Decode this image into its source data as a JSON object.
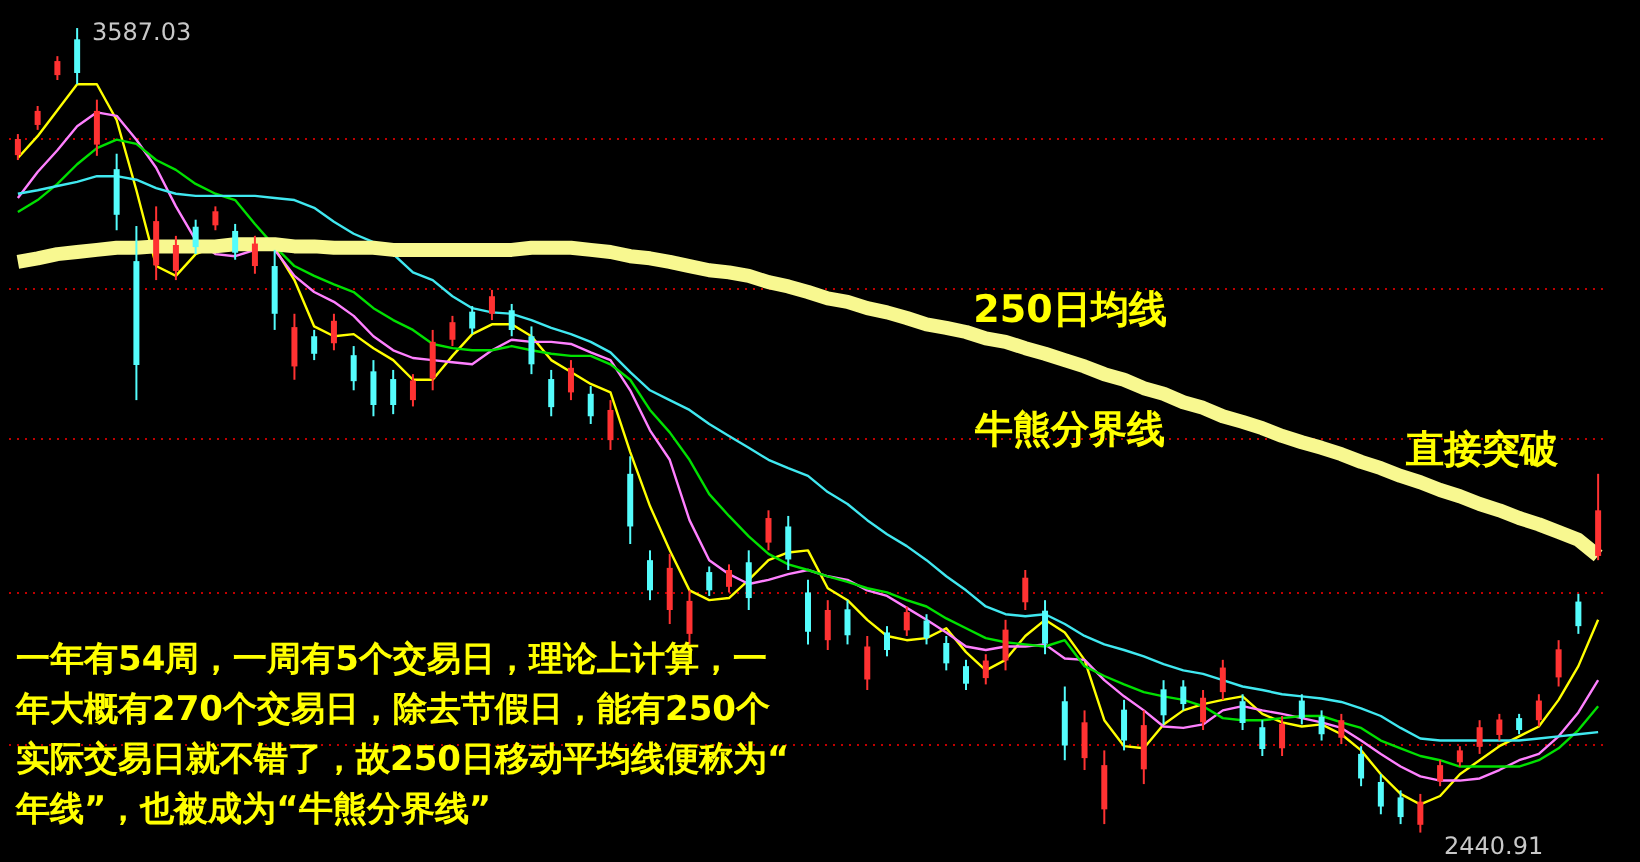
{
  "chart_data": {
    "type": "candlestick",
    "categories": [
      null,
      null,
      null,
      null,
      null,
      null,
      null,
      null,
      null,
      null,
      null,
      null,
      null,
      null,
      null,
      null,
      null,
      null,
      null,
      null,
      null,
      null,
      null,
      null,
      null,
      null,
      null,
      null,
      null,
      null,
      null,
      null,
      null,
      null,
      null,
      null,
      null,
      null,
      null,
      null,
      null,
      null,
      null,
      null,
      null,
      null,
      null,
      null,
      null,
      null,
      null,
      null,
      null,
      null,
      null,
      null,
      null,
      null,
      null,
      null,
      null,
      null,
      null,
      null,
      null,
      null,
      null,
      null,
      null,
      null,
      null,
      null,
      null,
      null,
      null,
      null,
      null,
      null,
      null,
      null,
      null
    ],
    "ohlc": [
      [
        3406,
        3436,
        3399,
        3429
      ],
      [
        3449,
        3476,
        3442,
        3469
      ],
      [
        3520,
        3547,
        3513,
        3540
      ],
      [
        3571,
        3587.03,
        3507,
        3523
      ],
      [
        3421,
        3485,
        3405,
        3469
      ],
      [
        3386,
        3408,
        3299,
        3321
      ],
      [
        3255,
        3305,
        3057,
        3107
      ],
      [
        3249,
        3333,
        3228,
        3312
      ],
      [
        3241,
        3291,
        3228,
        3278
      ],
      [
        3304,
        3314,
        3265,
        3275
      ],
      [
        3306,
        3333,
        3299,
        3326
      ],
      [
        3298,
        3308,
        3257,
        3267
      ],
      [
        3248,
        3291,
        3237,
        3280
      ],
      [
        3248,
        3271,
        3157,
        3180
      ],
      [
        3105,
        3180,
        3086,
        3161
      ],
      [
        3148,
        3157,
        3114,
        3123
      ],
      [
        3138,
        3180,
        3128,
        3170
      ],
      [
        3121,
        3134,
        3071,
        3084
      ],
      [
        3098,
        3114,
        3034,
        3050
      ],
      [
        3087,
        3100,
        3037,
        3050
      ],
      [
        3057,
        3094,
        3048,
        3085
      ],
      [
        3088,
        3157,
        3071,
        3140
      ],
      [
        3143,
        3177,
        3134,
        3168
      ],
      [
        3183,
        3191,
        3151,
        3159
      ],
      [
        3180,
        3214,
        3171,
        3205
      ],
      [
        3185,
        3194,
        3148,
        3157
      ],
      [
        3148,
        3162,
        3094,
        3108
      ],
      [
        3087,
        3100,
        3034,
        3047
      ],
      [
        3068,
        3114,
        3057,
        3103
      ],
      [
        3066,
        3077,
        3023,
        3034
      ],
      [
        3000,
        3057,
        2986,
        3043
      ],
      [
        2952,
        2977,
        2852,
        2877
      ],
      [
        2829,
        2843,
        2772,
        2786
      ],
      [
        2758,
        2838,
        2738,
        2818
      ],
      [
        2724,
        2786,
        2709,
        2771
      ],
      [
        2812,
        2820,
        2778,
        2786
      ],
      [
        2791,
        2823,
        2783,
        2815
      ],
      [
        2826,
        2843,
        2758,
        2775
      ],
      [
        2854,
        2900,
        2843,
        2889
      ],
      [
        2877,
        2892,
        2815,
        2830
      ],
      [
        2783,
        2801,
        2709,
        2727
      ],
      [
        2715,
        2772,
        2701,
        2758
      ],
      [
        2759,
        2772,
        2709,
        2722
      ],
      [
        2659,
        2721,
        2644,
        2706
      ],
      [
        2726,
        2735,
        2692,
        2701
      ],
      [
        2729,
        2763,
        2721,
        2755
      ],
      [
        2743,
        2752,
        2709,
        2718
      ],
      [
        2711,
        2721,
        2672,
        2682
      ],
      [
        2678,
        2687,
        2644,
        2653
      ],
      [
        2661,
        2695,
        2652,
        2686
      ],
      [
        2686,
        2744,
        2672,
        2730
      ],
      [
        2769,
        2815,
        2758,
        2804
      ],
      [
        2757,
        2772,
        2695,
        2710
      ],
      [
        2628,
        2649,
        2544,
        2565
      ],
      [
        2547,
        2615,
        2530,
        2598
      ],
      [
        2474,
        2558,
        2453,
        2537
      ],
      [
        2616,
        2630,
        2558,
        2572
      ],
      [
        2531,
        2615,
        2510,
        2594
      ],
      [
        2645,
        2658,
        2595,
        2608
      ],
      [
        2649,
        2658,
        2615,
        2624
      ],
      [
        2598,
        2644,
        2587,
        2633
      ],
      [
        2641,
        2687,
        2630,
        2676
      ],
      [
        2628,
        2638,
        2587,
        2597
      ],
      [
        2591,
        2601,
        2550,
        2560
      ],
      [
        2561,
        2607,
        2550,
        2596
      ],
      [
        2629,
        2638,
        2595,
        2604
      ],
      [
        2606,
        2615,
        2572,
        2581
      ],
      [
        2576,
        2610,
        2567,
        2601
      ],
      [
        2553,
        2564,
        2507,
        2518
      ],
      [
        2513,
        2524,
        2467,
        2478
      ],
      [
        2491,
        2501,
        2453,
        2463
      ],
      [
        2452,
        2496,
        2440.91,
        2485
      ],
      [
        2514,
        2544,
        2507,
        2537
      ],
      [
        2541,
        2564,
        2535,
        2558
      ],
      [
        2563,
        2601,
        2553,
        2591
      ],
      [
        2580,
        2610,
        2572,
        2602
      ],
      [
        2604,
        2610,
        2581,
        2587
      ],
      [
        2601,
        2638,
        2592,
        2629
      ],
      [
        2662,
        2715,
        2649,
        2702
      ],
      [
        2770,
        2781,
        2724,
        2735
      ],
      [
        2835,
        2952,
        2829,
        2900
      ]
    ],
    "colors": [
      "#ff3232",
      "#ff3232",
      "#ff3232",
      "#54fcfc",
      "#ff3232",
      "#54fcfc",
      "#54fcfc",
      "#ff3232",
      "#ff3232",
      "#54fcfc",
      "#ff3232",
      "#54fcfc",
      "#ff3232",
      "#54fcfc",
      "#ff3232",
      "#54fcfc",
      "#ff3232",
      "#54fcfc",
      "#54fcfc",
      "#54fcfc",
      "#ff3232",
      "#ff3232",
      "#ff3232",
      "#54fcfc",
      "#ff3232",
      "#54fcfc",
      "#54fcfc",
      "#54fcfc",
      "#ff3232",
      "#54fcfc",
      "#ff3232",
      "#54fcfc",
      "#54fcfc",
      "#ff3232",
      "#ff3232",
      "#54fcfc",
      "#ff3232",
      "#54fcfc",
      "#ff3232",
      "#54fcfc",
      "#54fcfc",
      "#ff3232",
      "#54fcfc",
      "#ff3232",
      "#54fcfc",
      "#ff3232",
      "#54fcfc",
      "#54fcfc",
      "#54fcfc",
      "#ff3232",
      "#ff3232",
      "#ff3232",
      "#54fcfc",
      "#54fcfc",
      "#ff3232",
      "#ff3232",
      "#54fcfc",
      "#ff3232",
      "#54fcfc",
      "#54fcfc",
      "#ff3232",
      "#ff3232",
      "#54fcfc",
      "#54fcfc",
      "#ff3232",
      "#54fcfc",
      "#54fcfc",
      "#ff3232",
      "#54fcfc",
      "#54fcfc",
      "#54fcfc",
      "#ff3232",
      "#ff3232",
      "#ff3232",
      "#ff3232",
      "#ff3232",
      "#54fcfc",
      "#ff3232",
      "#ff3232",
      "#54fcfc",
      "#ff3232"
    ],
    "series": [
      {
        "type": "line",
        "color": "#ffff00",
        "values": [
          3402,
          3433,
          3470,
          3507,
          3507,
          3456,
          3356,
          3248,
          3234,
          3265,
          3276,
          3276,
          3282,
          3274,
          3228,
          3162,
          3148,
          3151,
          3131,
          3114,
          3086,
          3086,
          3120,
          3151,
          3165,
          3165,
          3148,
          3114,
          3097,
          3080,
          3068,
          2983,
          2906,
          2843,
          2786,
          2772,
          2775,
          2801,
          2829,
          2840,
          2843,
          2789,
          2772,
          2744,
          2721,
          2715,
          2718,
          2732,
          2698,
          2672,
          2687,
          2721,
          2744,
          2726,
          2687,
          2601,
          2564,
          2561,
          2595,
          2615,
          2624,
          2630,
          2635,
          2610,
          2598,
          2592,
          2595,
          2581,
          2558,
          2524,
          2496,
          2481,
          2493,
          2524,
          2544,
          2564,
          2578,
          2592,
          2630,
          2678,
          2744
        ]
      },
      {
        "type": "line",
        "color": "#ff80ff",
        "values": [
          3345,
          3382,
          3413,
          3447,
          3467,
          3462,
          3428,
          3388,
          3333,
          3285,
          3265,
          3262,
          3271,
          3271,
          3234,
          3211,
          3197,
          3177,
          3148,
          3128,
          3117,
          3114,
          3111,
          3108,
          3128,
          3143,
          3140,
          3140,
          3137,
          3125,
          3114,
          3071,
          3014,
          2972,
          2886,
          2829,
          2809,
          2795,
          2801,
          2809,
          2815,
          2806,
          2801,
          2786,
          2778,
          2761,
          2744,
          2726,
          2706,
          2701,
          2706,
          2706,
          2709,
          2689,
          2687,
          2658,
          2635,
          2615,
          2592,
          2590,
          2595,
          2615,
          2621,
          2615,
          2610,
          2604,
          2598,
          2590,
          2572,
          2553,
          2535,
          2521,
          2515,
          2515,
          2518,
          2530,
          2544,
          2553,
          2578,
          2612,
          2658
        ]
      },
      {
        "type": "line",
        "color": "#00e000",
        "values": [
          3325,
          3342,
          3365,
          3393,
          3416,
          3428,
          3422,
          3399,
          3385,
          3365,
          3351,
          3342,
          3308,
          3276,
          3248,
          3234,
          3222,
          3211,
          3188,
          3171,
          3157,
          3137,
          3131,
          3128,
          3128,
          3134,
          3128,
          3123,
          3120,
          3120,
          3108,
          3086,
          3043,
          3011,
          2972,
          2923,
          2892,
          2863,
          2838,
          2823,
          2815,
          2806,
          2798,
          2789,
          2783,
          2772,
          2763,
          2746,
          2732,
          2718,
          2712,
          2709,
          2706,
          2715,
          2678,
          2664,
          2652,
          2641,
          2635,
          2630,
          2621,
          2604,
          2601,
          2601,
          2604,
          2607,
          2607,
          2598,
          2590,
          2572,
          2561,
          2550,
          2544,
          2535,
          2535,
          2535,
          2535,
          2544,
          2561,
          2587,
          2621
        ]
      },
      {
        "type": "line",
        "color": "#40e8f0",
        "values": [
          3351,
          3356,
          3362,
          3368,
          3376,
          3376,
          3371,
          3359,
          3351,
          3348,
          3348,
          3348,
          3348,
          3345,
          3342,
          3331,
          3311,
          3294,
          3282,
          3265,
          3239,
          3228,
          3205,
          3188,
          3182,
          3180,
          3171,
          3160,
          3151,
          3140,
          3125,
          3097,
          3071,
          3057,
          3043,
          3023,
          3006,
          2989,
          2972,
          2960,
          2949,
          2926,
          2909,
          2886,
          2866,
          2849,
          2829,
          2806,
          2786,
          2763,
          2752,
          2749,
          2752,
          2738,
          2721,
          2709,
          2701,
          2692,
          2681,
          2672,
          2667,
          2658,
          2649,
          2644,
          2638,
          2635,
          2632,
          2627,
          2618,
          2607,
          2590,
          2575,
          2572,
          2572,
          2572,
          2572,
          2572,
          2575,
          2578,
          2581,
          2584
        ]
      },
      {
        "type": "line",
        "color": "#f8f890",
        "values": [
          3254,
          3259,
          3265,
          3268,
          3271,
          3274,
          3274,
          3276,
          3276,
          3276,
          3276,
          3279,
          3279,
          3279,
          3276,
          3276,
          3274,
          3274,
          3274,
          3271,
          3271,
          3271,
          3271,
          3271,
          3271,
          3271,
          3274,
          3274,
          3274,
          3271,
          3268,
          3262,
          3259,
          3254,
          3248,
          3242,
          3239,
          3234,
          3225,
          3219,
          3211,
          3202,
          3197,
          3188,
          3182,
          3174,
          3165,
          3160,
          3154,
          3145,
          3140,
          3131,
          3123,
          3114,
          3105,
          3094,
          3086,
          3074,
          3066,
          3054,
          3046,
          3034,
          3026,
          3017,
          3006,
          2997,
          2989,
          2980,
          2969,
          2960,
          2949,
          2940,
          2929,
          2920,
          2909,
          2900,
          2889,
          2880,
          2869,
          2858,
          2835
        ]
      }
    ],
    "ylim": [
      2399,
      3627
    ],
    "yticks": [
      {
        "value": 3430,
        "label": null
      },
      {
        "value": 3217,
        "label": null
      },
      {
        "value": 3003,
        "label": null
      },
      {
        "value": 2783,
        "label": null
      },
      {
        "value": 2567,
        "label": null
      }
    ],
    "grid": "y",
    "tick_labels": false,
    "annotations": [
      "250日均线",
      "牛熊分界线",
      "直接突破",
      "一年有54周，一周有5个交易日，理论上计算，一年大概有270个交易日，除去节假日，能有250个实际交易日就不错了，故250日移动平均线便称为“年线”，也被成为“牛熊分界线”",
      "3587.03",
      "2440.91"
    ]
  }
}
